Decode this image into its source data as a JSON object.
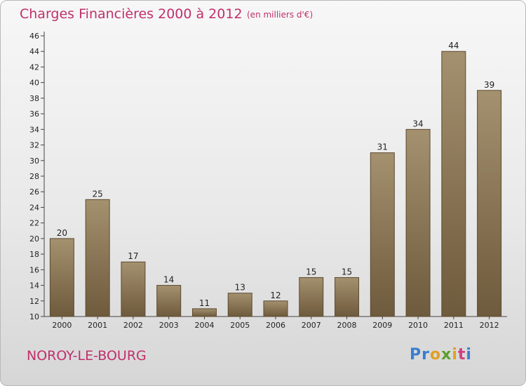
{
  "header": {
    "title": "Charges Financières 2000 à 2012",
    "subtitle": "(en milliers d'€)"
  },
  "footer": {
    "commune": "NOROY-LE-BOURG",
    "logo_text": "Proxiti"
  },
  "colors": {
    "title": "#c0306a",
    "bar_top": "#a4916f",
    "bar_bottom": "#6e5a3c",
    "bar_edge": "#5c4a30",
    "logo_letters": [
      "#3a7fd0",
      "#3a7fd0",
      "#e0a020",
      "#5aa02c",
      "#e0a020",
      "#d04080",
      "#3a7fd0"
    ]
  },
  "chart_data": {
    "type": "bar",
    "title": "Charges Financières 2000 à 2012",
    "subtitle": "(en milliers d'€)",
    "categories": [
      "2000",
      "2001",
      "2002",
      "2003",
      "2004",
      "2005",
      "2006",
      "2007",
      "2008",
      "2009",
      "2010",
      "2011",
      "2012"
    ],
    "values": [
      20,
      25,
      17,
      14,
      11,
      13,
      12,
      15,
      15,
      31,
      34,
      44,
      39
    ],
    "ylim": [
      10,
      46
    ],
    "yticks": [
      10,
      12,
      14,
      16,
      18,
      20,
      22,
      24,
      26,
      28,
      30,
      32,
      34,
      36,
      38,
      40,
      42,
      44,
      46
    ],
    "grid": false
  }
}
